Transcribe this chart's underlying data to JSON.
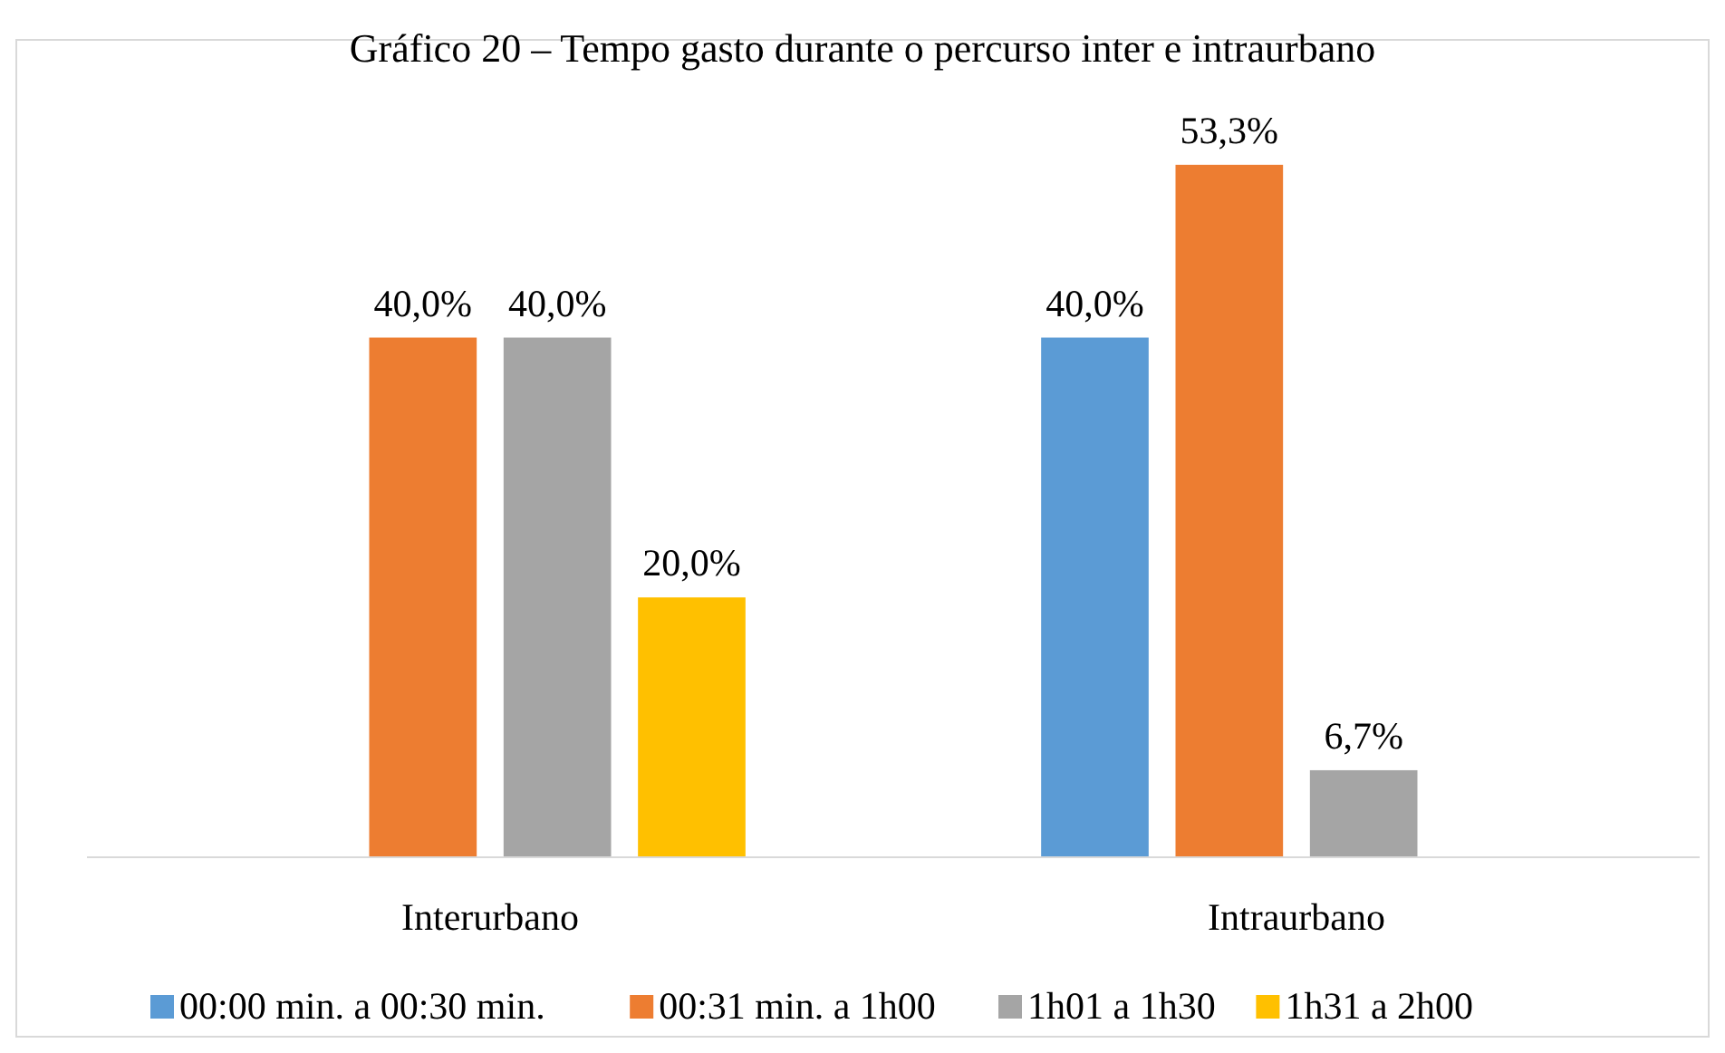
{
  "chart_data": {
    "type": "bar",
    "title": "Gráfico 20 – Tempo gasto durante o percurso inter e intraurbano",
    "categories": [
      "Interurbano",
      "Intraurbano"
    ],
    "series": [
      {
        "name": "00:00 min. a 00:30 min.",
        "color": "#5b9bd5",
        "values": [
          null,
          40.0
        ],
        "value_labels": [
          null,
          "40,0%"
        ]
      },
      {
        "name": "00:31 min. a 1h00",
        "color": "#ed7d31",
        "values": [
          40.0,
          53.3
        ],
        "value_labels": [
          "40,0%",
          "53,3%"
        ]
      },
      {
        "name": "1h01 a 1h30",
        "color": "#a5a5a5",
        "values": [
          40.0,
          6.7
        ],
        "value_labels": [
          "40,0%",
          "6,7%"
        ]
      },
      {
        "name": "1h31 a 2h00",
        "color": "#ffc000",
        "values": [
          20.0,
          null
        ],
        "value_labels": [
          "20,0%",
          null
        ]
      }
    ],
    "legend": "bottom",
    "grid": false
  }
}
